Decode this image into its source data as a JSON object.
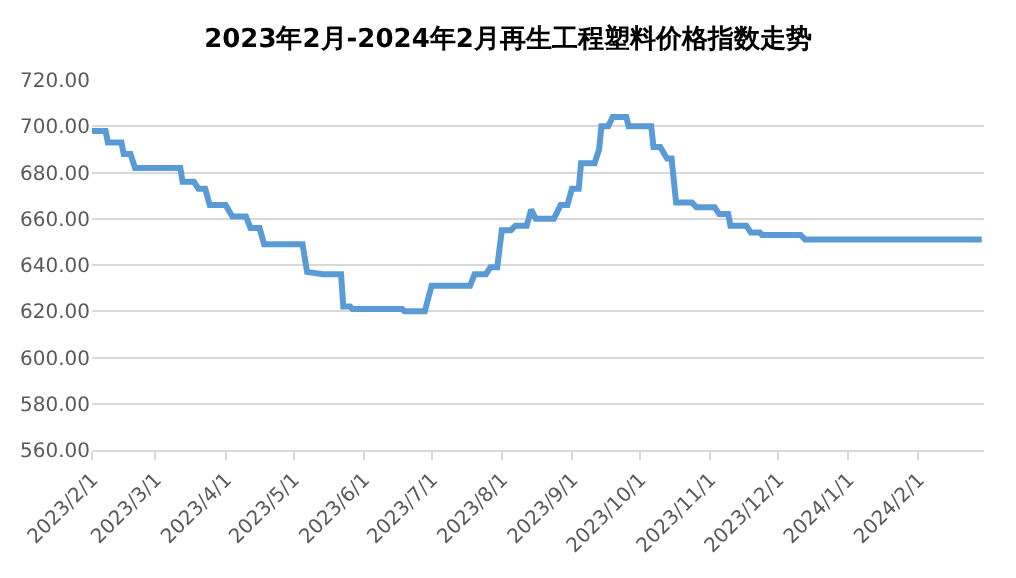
{
  "chart_data": {
    "type": "line",
    "title": "2023年2月-2024年2月再生工程塑料价格指数走势",
    "x": [
      "2023-02-01",
      "2023-02-07",
      "2023-02-08",
      "2023-02-14",
      "2023-02-15",
      "2023-02-18",
      "2023-02-20",
      "2023-03-12",
      "2023-03-13",
      "2023-03-18",
      "2023-03-20",
      "2023-03-23",
      "2023-03-25",
      "2023-04-01",
      "2023-04-04",
      "2023-04-10",
      "2023-04-12",
      "2023-04-16",
      "2023-04-18",
      "2023-05-05",
      "2023-05-07",
      "2023-05-14",
      "2023-05-22",
      "2023-05-23",
      "2023-05-26",
      "2023-05-27",
      "2023-06-18",
      "2023-06-19",
      "2023-06-28",
      "2023-07-01",
      "2023-07-18",
      "2023-07-20",
      "2023-07-25",
      "2023-07-27",
      "2023-07-30",
      "2023-08-01",
      "2023-08-05",
      "2023-08-07",
      "2023-08-12",
      "2023-08-14",
      "2023-08-16",
      "2023-08-24",
      "2023-08-27",
      "2023-08-30",
      "2023-09-01",
      "2023-09-04",
      "2023-09-05",
      "2023-09-11",
      "2023-09-13",
      "2023-09-14",
      "2023-09-17",
      "2023-09-19",
      "2023-09-25",
      "2023-09-26",
      "2023-10-06",
      "2023-10-07",
      "2023-10-10",
      "2023-10-13",
      "2023-10-15",
      "2023-10-17",
      "2023-10-24",
      "2023-10-26",
      "2023-11-03",
      "2023-11-05",
      "2023-11-09",
      "2023-11-10",
      "2023-11-17",
      "2023-11-19",
      "2023-11-23",
      "2023-11-24",
      "2023-12-11",
      "2023-12-13",
      "2024-02-29"
    ],
    "series": [
      {
        "color": "#5b9bd5",
        "values": [
          698,
          698,
          693,
          693,
          688,
          688,
          682,
          682,
          676,
          676,
          673,
          673,
          666,
          666,
          661,
          661,
          656,
          656,
          649,
          649,
          637,
          636,
          636,
          622,
          622,
          621,
          621,
          620,
          620,
          631,
          631,
          636,
          636,
          639,
          639,
          655,
          655,
          657,
          657,
          664,
          660,
          660,
          666,
          666,
          673,
          673,
          684,
          684,
          690,
          700,
          700,
          704,
          704,
          700,
          700,
          691,
          691,
          686,
          686,
          667,
          667,
          665,
          665,
          662,
          662,
          657,
          657,
          654,
          654,
          653,
          653,
          651,
          651
        ]
      }
    ],
    "xlim": [
      "2023-02-01",
      "2024-03-01"
    ],
    "xticks": [
      {
        "value": "2023-02-01",
        "label": "2023/2/1"
      },
      {
        "value": "2023-03-01",
        "label": "2023/3/1"
      },
      {
        "value": "2023-04-01",
        "label": "2023/4/1"
      },
      {
        "value": "2023-05-01",
        "label": "2023/5/1"
      },
      {
        "value": "2023-06-01",
        "label": "2023/6/1"
      },
      {
        "value": "2023-07-01",
        "label": "2023/7/1"
      },
      {
        "value": "2023-08-01",
        "label": "2023/8/1"
      },
      {
        "value": "2023-09-01",
        "label": "2023/9/1"
      },
      {
        "value": "2023-10-01",
        "label": "2023/10/1"
      },
      {
        "value": "2023-11-01",
        "label": "2023/11/1"
      },
      {
        "value": "2023-12-01",
        "label": "2023/12/1"
      },
      {
        "value": "2024-01-01",
        "label": "2024/1/1"
      },
      {
        "value": "2024-02-01",
        "label": "2024/2/1"
      }
    ],
    "ylim": [
      560,
      720
    ],
    "yticks": [
      {
        "value": 560,
        "label": "560.00"
      },
      {
        "value": 580,
        "label": "580.00"
      },
      {
        "value": 600,
        "label": "600.00"
      },
      {
        "value": 620,
        "label": "620.00"
      },
      {
        "value": 640,
        "label": "640.00"
      },
      {
        "value": 660,
        "label": "660.00"
      },
      {
        "value": 680,
        "label": "680.00"
      },
      {
        "value": 700,
        "label": "700.00"
      },
      {
        "value": 720,
        "label": "720.00"
      }
    ],
    "grid": "y",
    "marker": "none",
    "line_style": "solid"
  }
}
